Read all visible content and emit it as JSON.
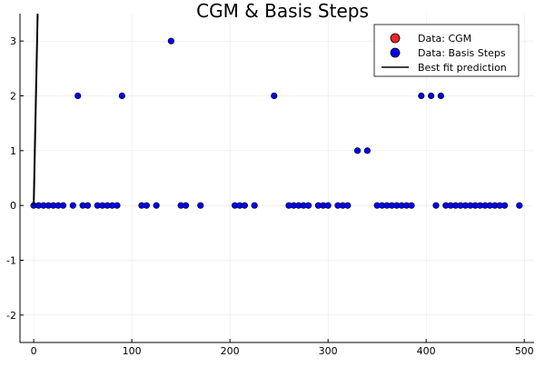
{
  "chart_data": {
    "type": "scatter",
    "title": "CGM & Basis Steps",
    "xlabel": "",
    "ylabel": "",
    "xlim": [
      -14,
      510
    ],
    "ylim": [
      -2.5,
      3.5
    ],
    "xticks": [
      0,
      100,
      200,
      300,
      400,
      500
    ],
    "yticks": [
      -2,
      -1,
      0,
      1,
      2,
      3
    ],
    "grid": true,
    "legend_position": "top-right",
    "legend": [
      {
        "label": "Data: CGM",
        "marker": "circle",
        "color": "#e8262b"
      },
      {
        "label": "Data: Basis Steps",
        "marker": "circle",
        "color": "#0000ee"
      },
      {
        "label": "Best fit prediction",
        "marker": "line",
        "color": "#000000"
      }
    ],
    "series": [
      {
        "name": "Data: Basis Steps",
        "kind": "scatter",
        "color": "#0000ee",
        "points": [
          [
            0,
            0
          ],
          [
            5,
            0
          ],
          [
            10,
            0
          ],
          [
            15,
            0
          ],
          [
            20,
            0
          ],
          [
            25,
            0
          ],
          [
            30,
            0
          ],
          [
            40,
            0
          ],
          [
            45,
            2
          ],
          [
            50,
            0
          ],
          [
            55,
            0
          ],
          [
            65,
            0
          ],
          [
            70,
            0
          ],
          [
            75,
            0
          ],
          [
            80,
            0
          ],
          [
            85,
            0
          ],
          [
            90,
            2
          ],
          [
            110,
            0
          ],
          [
            115,
            0
          ],
          [
            125,
            0
          ],
          [
            140,
            3
          ],
          [
            150,
            0
          ],
          [
            155,
            0
          ],
          [
            170,
            0
          ],
          [
            205,
            0
          ],
          [
            210,
            0
          ],
          [
            215,
            0
          ],
          [
            225,
            0
          ],
          [
            245,
            2
          ],
          [
            260,
            0
          ],
          [
            265,
            0
          ],
          [
            270,
            0
          ],
          [
            275,
            0
          ],
          [
            280,
            0
          ],
          [
            290,
            0
          ],
          [
            295,
            0
          ],
          [
            300,
            0
          ],
          [
            310,
            0
          ],
          [
            315,
            0
          ],
          [
            320,
            0
          ],
          [
            330,
            1
          ],
          [
            340,
            1
          ],
          [
            350,
            0
          ],
          [
            355,
            0
          ],
          [
            360,
            0
          ],
          [
            365,
            0
          ],
          [
            370,
            0
          ],
          [
            375,
            0
          ],
          [
            380,
            0
          ],
          [
            385,
            0
          ],
          [
            395,
            2
          ],
          [
            405,
            2
          ],
          [
            410,
            0
          ],
          [
            415,
            2
          ],
          [
            420,
            0
          ],
          [
            425,
            0
          ],
          [
            430,
            0
          ],
          [
            435,
            0
          ],
          [
            440,
            0
          ],
          [
            445,
            0
          ],
          [
            450,
            0
          ],
          [
            455,
            0
          ],
          [
            460,
            0
          ],
          [
            465,
            0
          ],
          [
            470,
            0
          ],
          [
            475,
            0
          ],
          [
            480,
            0
          ],
          [
            495,
            0
          ]
        ]
      },
      {
        "name": "Best fit prediction",
        "kind": "line",
        "color": "#000000",
        "points": [
          [
            0,
            0
          ],
          [
            4,
            3.5
          ]
        ]
      }
    ]
  }
}
